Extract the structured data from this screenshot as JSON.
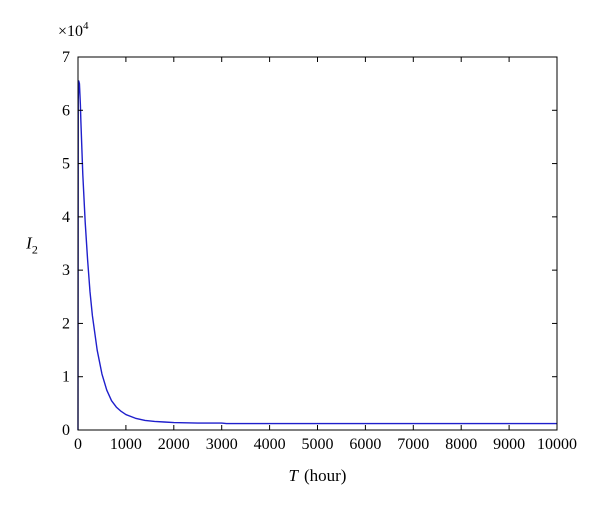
{
  "chart_data": {
    "type": "line",
    "title": "",
    "xlabel": {
      "var": "T",
      "unit": "(hour)"
    },
    "ylabel": {
      "var": "I",
      "sub": "2"
    },
    "y_multiplier": {
      "base": "×10",
      "exp": "4"
    },
    "xlim": [
      0,
      10000
    ],
    "ylim": [
      0,
      7
    ],
    "x_ticks": [
      "0",
      "1000",
      "2000",
      "3000",
      "4000",
      "5000",
      "6000",
      "7000",
      "8000",
      "9000",
      "10000"
    ],
    "y_ticks": [
      "0",
      "1",
      "2",
      "3",
      "4",
      "5",
      "6",
      "7"
    ],
    "grid": false,
    "legend": "none",
    "series": [
      {
        "color": "#1f1fcc",
        "x": [
          0,
          5,
          15,
          30,
          40,
          50,
          60,
          80,
          100,
          150,
          200,
          250,
          300,
          400,
          500,
          600,
          700,
          800,
          900,
          1000,
          1200,
          1400,
          1600,
          1800,
          2000,
          2500,
          3000,
          3100,
          3200,
          4000,
          5000,
          6000,
          7000,
          8000,
          9000,
          10000
        ],
        "y": [
          0,
          6.2,
          6.55,
          6.5,
          6.3,
          6.1,
          5.8,
          5.3,
          4.8,
          3.9,
          3.2,
          2.6,
          2.15,
          1.5,
          1.05,
          0.75,
          0.55,
          0.43,
          0.35,
          0.29,
          0.22,
          0.18,
          0.16,
          0.15,
          0.14,
          0.13,
          0.13,
          0.12,
          0.12,
          0.12,
          0.12,
          0.12,
          0.12,
          0.12,
          0.12,
          0.12
        ]
      }
    ]
  }
}
